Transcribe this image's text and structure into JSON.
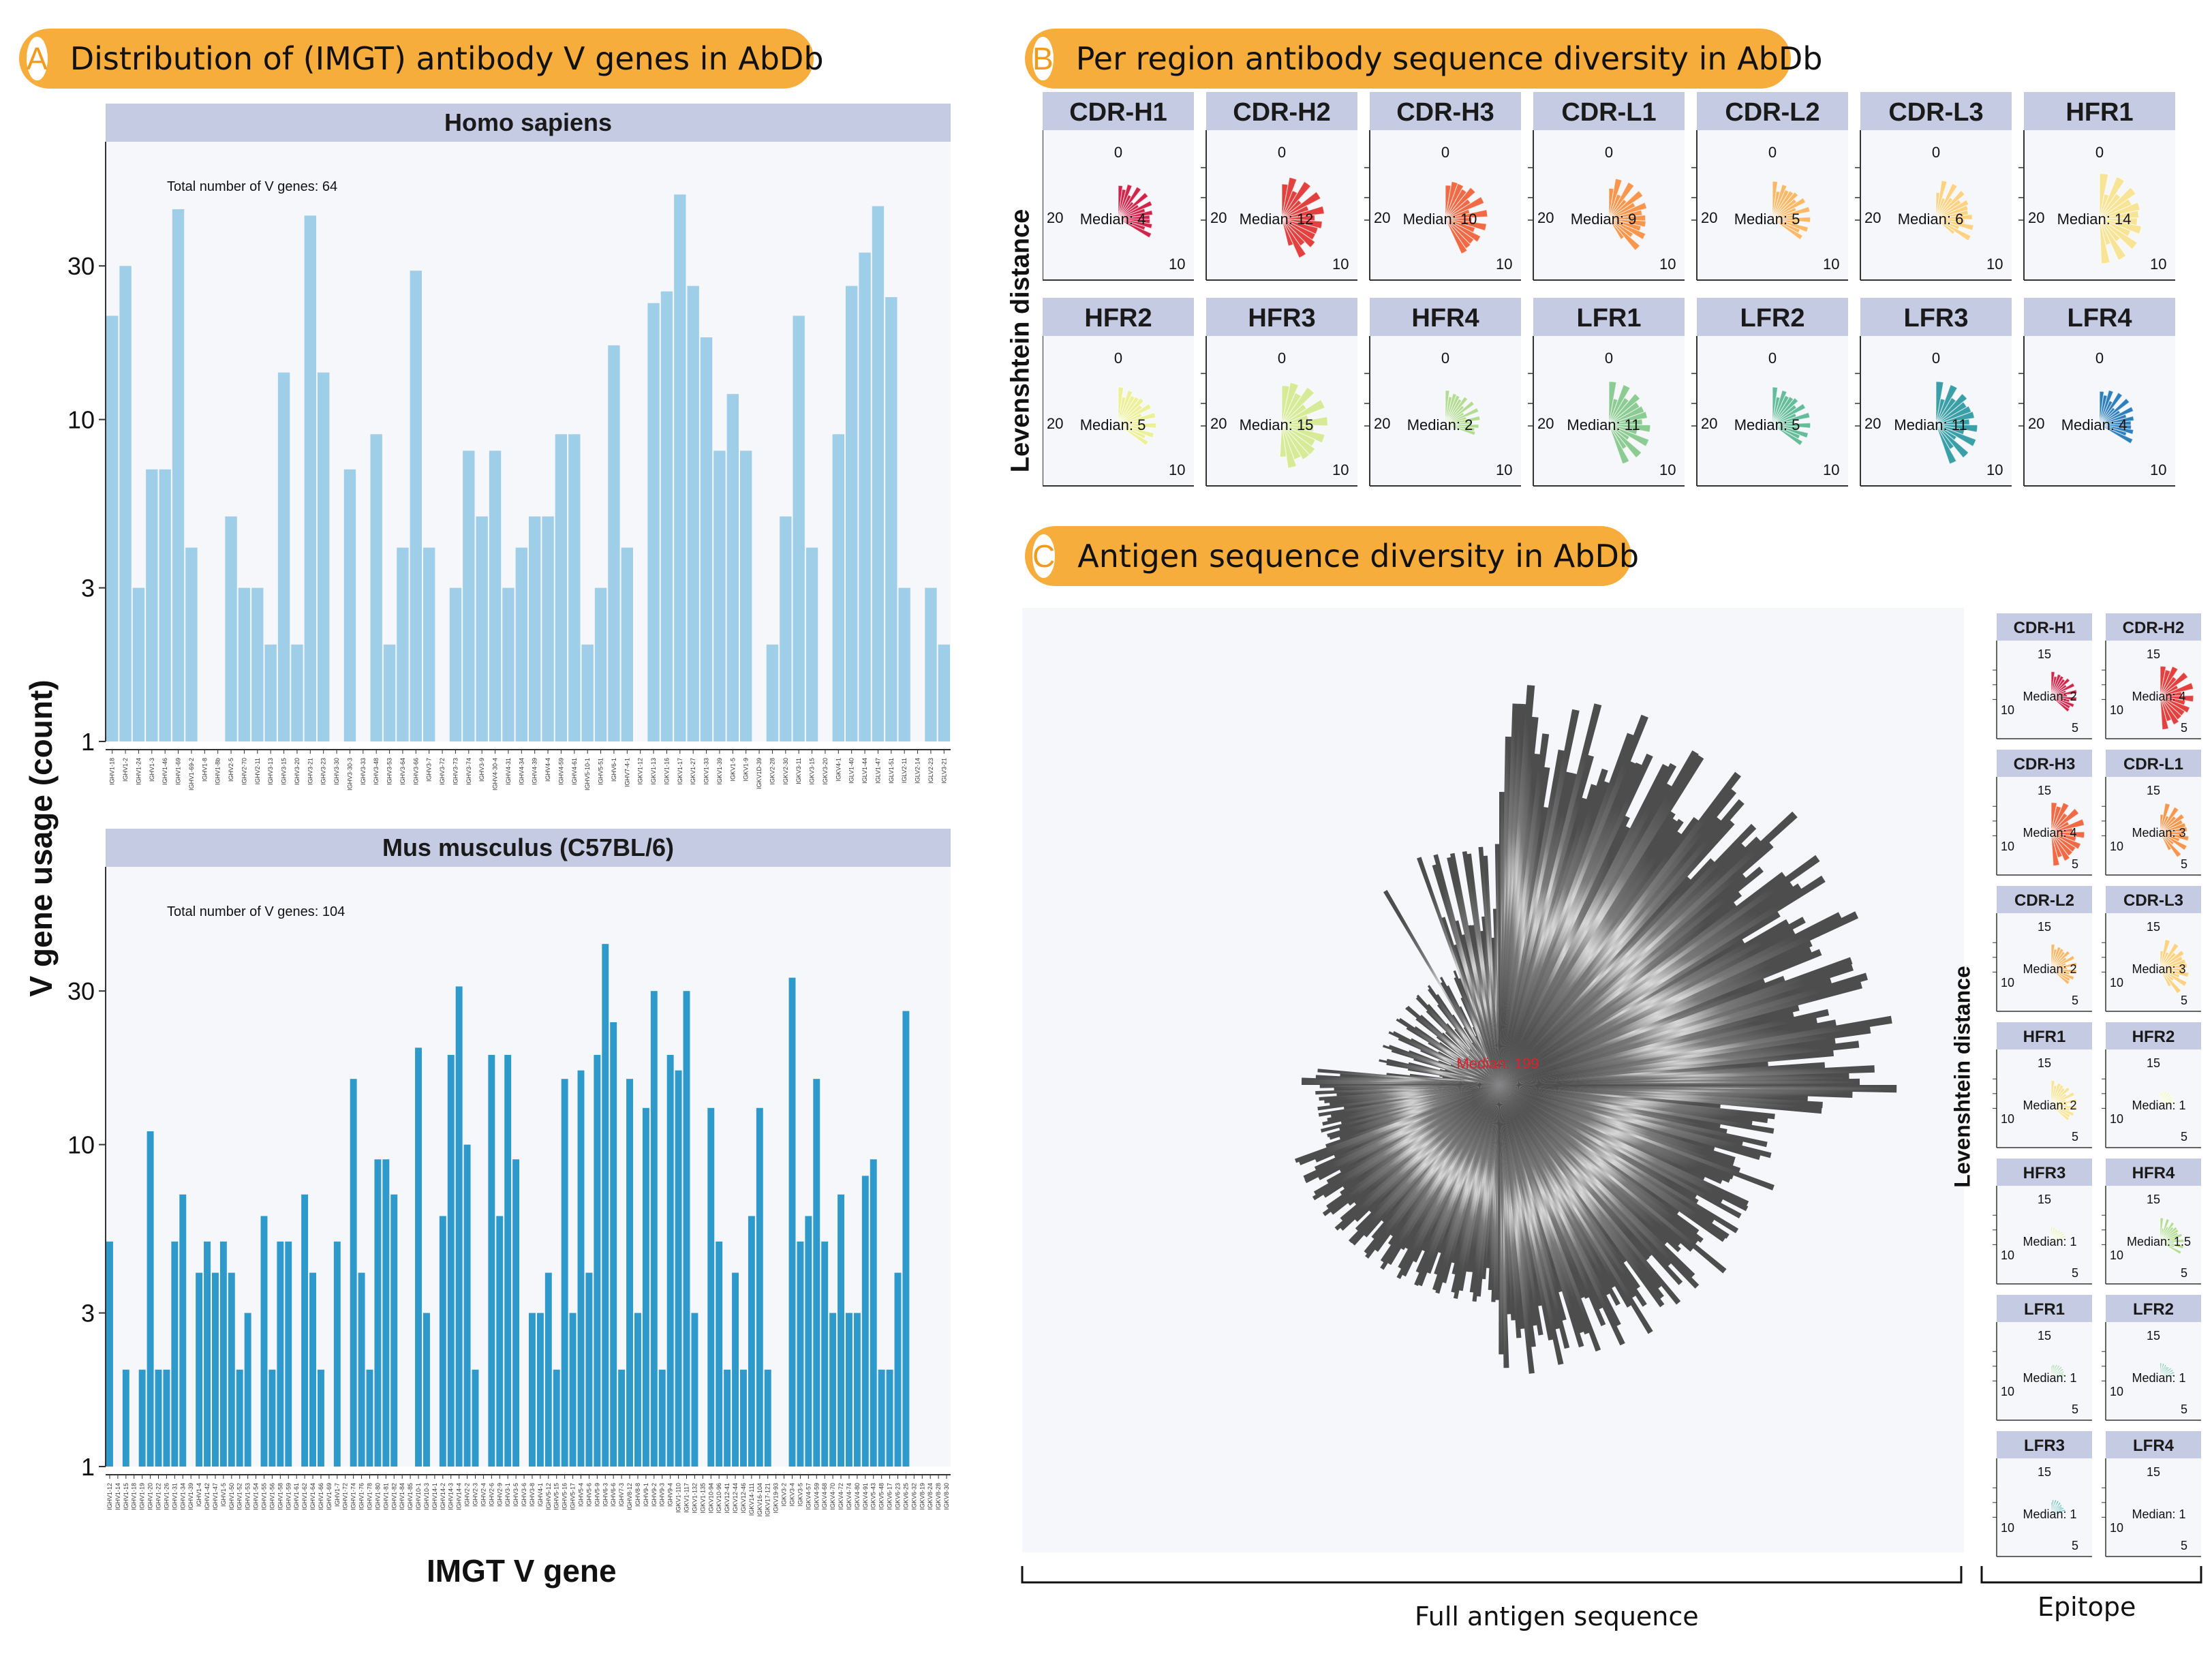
{
  "panels": {
    "a": {
      "letter": "A",
      "title": "Distribution of (IMGT) antibody V genes in AbDb"
    },
    "b": {
      "letter": "B",
      "title": "Per region antibody sequence diversity in AbDb"
    },
    "c": {
      "letter": "C",
      "title": "Antigen sequence diversity in AbDb"
    }
  },
  "colors": {
    "pill": "#f6ad3c",
    "strip": "#c4cbe3",
    "human_bar": "#9fcfe8",
    "mouse_bar": "#2e9acc",
    "antigen": "#4d4d4d",
    "median_red": "#e0202a"
  },
  "axes": {
    "a_ylabel": "V gene usage (count)",
    "a_xlabel": "IMGT V gene",
    "b_ylabel": "Levenshtein distance",
    "c_ylabel": "Levenshtein distance",
    "c_full_label": "Full antigen sequence",
    "c_epitope_label": "Epitope"
  },
  "chart_data": [
    {
      "type": "bar",
      "title": "Homo sapiens",
      "annotation": "Total number of V genes: 64",
      "ylabel": "V gene usage (count)",
      "xlabel": "IMGT V gene",
      "y_scale": "log",
      "ylim": [
        1,
        60
      ],
      "yticks": [
        1,
        3,
        10,
        30
      ],
      "categories": [
        "IGHV1-18",
        "IGHV1-2",
        "IGHV1-24",
        "IGHV1-3",
        "IGHV1-46",
        "IGHV1-69",
        "IGHV1-69-2",
        "IGHV1-8",
        "IGHV1-8b",
        "IGHV2-5",
        "IGHV2-70",
        "IGHV2-11",
        "IGHV3-13",
        "IGHV3-15",
        "IGHV3-20",
        "IGHV3-21",
        "IGHV3-23",
        "IGHV3-30",
        "IGHV3-30-3",
        "IGHV3-33",
        "IGHV3-48",
        "IGHV3-53",
        "IGHV3-64",
        "IGHV3-66",
        "IGHV3-7",
        "IGHV3-72",
        "IGHV3-73",
        "IGHV3-74",
        "IGHV3-9",
        "IGHV4-30-4",
        "IGHV4-31",
        "IGHV4-34",
        "IGHV4-39",
        "IGHV4-4",
        "IGHV4-59",
        "IGHV4-61",
        "IGHV5-10-1",
        "IGHV5-51",
        "IGHV6-1",
        "IGHV7-4-1",
        "IGKV1-12",
        "IGKV1-13",
        "IGKV1-16",
        "IGKV1-17",
        "IGKV1-27",
        "IGKV1-33",
        "IGKV1-39",
        "IGKV1-5",
        "IGKV1-9",
        "IGKV1D-39",
        "IGKV2-28",
        "IGKV2-30",
        "IGKV3-11",
        "IGKV3-15",
        "IGKV3-20",
        "IGKV4-1",
        "IGLV1-40",
        "IGLV1-44",
        "IGLV1-47",
        "IGLV1-51",
        "IGLV2-11",
        "IGLV2-14",
        "IGLV2-23",
        "IGLV3-21"
      ],
      "values": [
        21,
        30,
        3,
        7,
        7,
        45,
        4,
        1,
        1,
        5,
        3,
        3,
        2,
        14,
        2,
        43,
        14,
        1,
        7,
        1,
        9,
        2,
        4,
        29,
        4,
        1,
        3,
        8,
        5,
        8,
        3,
        4,
        5,
        5,
        9,
        9,
        2,
        3,
        17,
        4,
        1,
        23,
        25,
        50,
        26,
        18,
        8,
        12,
        8,
        1,
        2,
        5,
        21,
        4,
        1,
        9,
        26,
        33,
        46,
        24,
        3,
        1,
        3,
        2
      ]
    },
    {
      "type": "bar",
      "title": "Mus musculus (C57BL/6)",
      "annotation": "Total number of V genes: 104",
      "ylabel": "V gene usage (count)",
      "xlabel": "IMGT V gene",
      "y_scale": "log",
      "ylim": [
        1,
        60
      ],
      "yticks": [
        1,
        3,
        10,
        30
      ],
      "categories": [
        "IGHV1-12",
        "IGHV1-14",
        "IGHV1-15",
        "IGHV1-18",
        "IGHV1-19",
        "IGHV1-20",
        "IGHV1-22",
        "IGHV1-26",
        "IGHV1-31",
        "IGHV1-34",
        "IGHV1-39",
        "IGHV1-4",
        "IGHV1-42",
        "IGHV1-47",
        "IGHV1-5",
        "IGHV1-50",
        "IGHV1-52",
        "IGHV1-53",
        "IGHV1-54",
        "IGHV1-55",
        "IGHV1-56",
        "IGHV1-58",
        "IGHV1-59",
        "IGHV1-61",
        "IGHV1-62",
        "IGHV1-64",
        "IGHV1-66",
        "IGHV1-69",
        "IGHV1-7",
        "IGHV1-72",
        "IGHV1-74",
        "IGHV1-76",
        "IGHV1-78",
        "IGHV1-80",
        "IGHV1-81",
        "IGHV1-82",
        "IGHV1-84",
        "IGHV1-85",
        "IGHV10-1",
        "IGHV10-3",
        "IGHV14-1",
        "IGHV14-2",
        "IGHV14-3",
        "IGHV14-4",
        "IGHV2-2",
        "IGHV2-3",
        "IGHV2-4",
        "IGHV2-6",
        "IGHV2-9",
        "IGHV3-1",
        "IGHV3-5",
        "IGHV3-6",
        "IGHV3-8",
        "IGHV4-1",
        "IGHV5-12",
        "IGHV5-15",
        "IGHV5-16",
        "IGHV5-17",
        "IGHV5-4",
        "IGHV5-6",
        "IGHV5-9",
        "IGHV6-3",
        "IGHV6-6",
        "IGHV7-3",
        "IGHV8-12",
        "IGHV8-8",
        "IGHV9-1",
        "IGHV9-2",
        "IGHV9-3",
        "IGHV9-4",
        "IGKV1-110",
        "IGKV1-117",
        "IGKV1-132",
        "IGKV1-135",
        "IGKV10-94",
        "IGKV10-96",
        "IGKV12-41",
        "IGKV12-44",
        "IGKV12-46",
        "IGKV14-111",
        "IGKV16-104",
        "IGKV17-121",
        "IGKV19-93",
        "IGKV3-2",
        "IGKV3-4",
        "IGKV3-5",
        "IGKV4-57",
        "IGKV4-59",
        "IGKV4-68",
        "IGKV4-70",
        "IGKV4-72",
        "IGKV4-74",
        "IGKV4-80",
        "IGKV4-91",
        "IGKV5-43",
        "IGKV5-48",
        "IGKV6-17",
        "IGKV6-23",
        "IGKV6-25",
        "IGKV6-32",
        "IGKV8-19",
        "IGKV8-24",
        "IGKV8-28",
        "IGKV8-30"
      ],
      "values": [
        5,
        1,
        2,
        1,
        2,
        11,
        2,
        2,
        5,
        7,
        1,
        4,
        5,
        4,
        5,
        4,
        2,
        3,
        1,
        6,
        2,
        5,
        5,
        1,
        7,
        4,
        2,
        1,
        5,
        1,
        16,
        4,
        2,
        9,
        9,
        7,
        1,
        1,
        20,
        3,
        1,
        6,
        19,
        31,
        10,
        2,
        1,
        19,
        6,
        19,
        9,
        1,
        3,
        3,
        4,
        2,
        16,
        3,
        17,
        4,
        19,
        42,
        24,
        2,
        16,
        3,
        13,
        30,
        2,
        19,
        17,
        30,
        3,
        1,
        13,
        5,
        2,
        4,
        2,
        6,
        13,
        2,
        1,
        1,
        33,
        5,
        6,
        16,
        5,
        3,
        7,
        3,
        3,
        8,
        9,
        2,
        2,
        4,
        26,
        1,
        1,
        1,
        1,
        1
      ]
    },
    {
      "type": "polar_bar",
      "title": "Per region antibody sequence diversity in AbDb",
      "ylabel": "Levenshtein distance",
      "radial_ticks": [
        0,
        10,
        20
      ],
      "facets": [
        {
          "name": "CDR-H1",
          "median_label": "Median: 4",
          "color": "#d1244b"
        },
        {
          "name": "CDR-H2",
          "median_label": "Median: 12",
          "color": "#e2413f"
        },
        {
          "name": "CDR-H3",
          "median_label": "Median: 10",
          "color": "#f06a45"
        },
        {
          "name": "CDR-L1",
          "median_label": "Median: 9",
          "color": "#f7964c"
        },
        {
          "name": "CDR-L2",
          "median_label": "Median: 5",
          "color": "#fbb867"
        },
        {
          "name": "CDR-L3",
          "median_label": "Median: 6",
          "color": "#fdd383"
        },
        {
          "name": "HFR1",
          "median_label": "Median: 14",
          "color": "#f7e496"
        },
        {
          "name": "HFR2",
          "median_label": "Median: 5",
          "color": "#ecf099"
        },
        {
          "name": "HFR3",
          "median_label": "Median: 15",
          "color": "#d7ea98"
        },
        {
          "name": "HFR4",
          "median_label": "Median: 2",
          "color": "#b3dc93"
        },
        {
          "name": "LFR1",
          "median_label": "Median: 11",
          "color": "#8ccb93"
        },
        {
          "name": "LFR2",
          "median_label": "Median: 5",
          "color": "#64bc9b"
        },
        {
          "name": "LFR3",
          "median_label": "Median: 11",
          "color": "#3a9fa7"
        },
        {
          "name": "LFR4",
          "median_label": "Median: 4",
          "color": "#2e7fbd"
        }
      ]
    },
    {
      "type": "polar_bar",
      "title": "Full antigen sequence",
      "median_label": "Median: 199"
    },
    {
      "type": "polar_bar",
      "title": "Epitope",
      "ylabel": "Levenshtein distance",
      "radial_ticks": [
        5,
        10,
        15
      ],
      "facets": [
        {
          "name": "CDR-H1",
          "median_label": "Median: 2",
          "color": "#d1244b"
        },
        {
          "name": "CDR-H2",
          "median_label": "Median: 4",
          "color": "#e2413f"
        },
        {
          "name": "CDR-H3",
          "median_label": "Median: 4",
          "color": "#f06a45"
        },
        {
          "name": "CDR-L1",
          "median_label": "Median: 3",
          "color": "#f7964c"
        },
        {
          "name": "CDR-L2",
          "median_label": "Median: 2",
          "color": "#fbb867"
        },
        {
          "name": "CDR-L3",
          "median_label": "Median: 3",
          "color": "#fdd383"
        },
        {
          "name": "HFR1",
          "median_label": "Median: 2",
          "color": "#f7e496"
        },
        {
          "name": "HFR2",
          "median_label": "Median: 1",
          "color": "#ecf099"
        },
        {
          "name": "HFR3",
          "median_label": "Median: 1",
          "color": "#d7ea98"
        },
        {
          "name": "HFR4",
          "median_label": "Median: 1.5",
          "color": "#b3dc93"
        },
        {
          "name": "LFR1",
          "median_label": "Median: 1",
          "color": "#8ccb93"
        },
        {
          "name": "LFR2",
          "median_label": "Median: 1",
          "color": "#64bc9b"
        },
        {
          "name": "LFR3",
          "median_label": "Median: 1",
          "color": "#3a9fa7"
        },
        {
          "name": "LFR4",
          "median_label": "Median: 1",
          "color": "#2e7fbd"
        }
      ]
    }
  ]
}
